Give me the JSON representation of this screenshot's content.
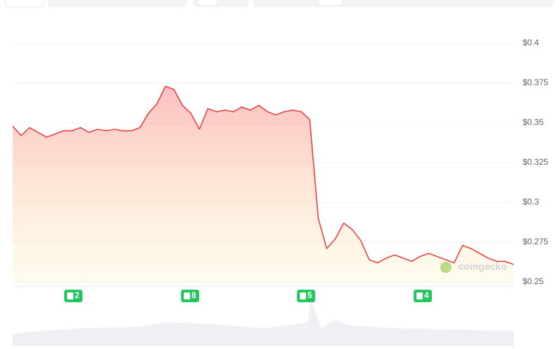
{
  "chart_data": {
    "type": "line",
    "series": [
      {
        "color": "#e84142",
        "values": [
          0.348,
          0.342,
          0.347,
          0.344,
          0.341,
          0.343,
          0.345,
          0.345,
          0.347,
          0.344,
          0.346,
          0.345,
          0.346,
          0.345,
          0.345,
          0.347,
          0.356,
          0.362,
          0.373,
          0.371,
          0.361,
          0.356,
          0.346,
          0.359,
          0.357,
          0.358,
          0.357,
          0.36,
          0.358,
          0.361,
          0.357,
          0.355,
          0.357,
          0.358,
          0.357,
          0.352,
          0.29,
          0.271,
          0.277,
          0.287,
          0.283,
          0.276,
          0.264,
          0.262,
          0.265,
          0.267,
          0.265,
          0.263,
          0.266,
          0.268,
          0.266,
          0.264,
          0.262,
          0.273,
          0.271,
          0.268,
          0.265,
          0.263,
          0.263,
          0.261
        ]
      }
    ],
    "ylim": [
      0.25,
      0.4
    ],
    "yticks": [
      {
        "value": 0.25,
        "label": "$0.25"
      },
      {
        "value": 0.275,
        "label": "$0.275"
      },
      {
        "value": 0.3,
        "label": "$0.3"
      },
      {
        "value": 0.325,
        "label": "$0.325"
      },
      {
        "value": 0.35,
        "label": "$0.35"
      },
      {
        "value": 0.375,
        "label": "$0.375"
      },
      {
        "value": 0.4,
        "label": "$0.4"
      }
    ],
    "grid": true,
    "events": [
      "2",
      "8",
      "5",
      "4"
    ],
    "watermark": "coingecko"
  }
}
